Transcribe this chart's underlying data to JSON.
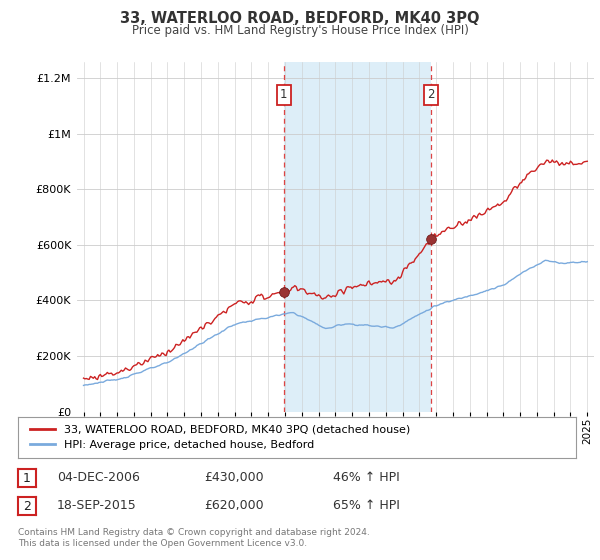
{
  "title": "33, WATERLOO ROAD, BEDFORD, MK40 3PQ",
  "subtitle": "Price paid vs. HM Land Registry's House Price Index (HPI)",
  "legend_line1": "33, WATERLOO ROAD, BEDFORD, MK40 3PQ (detached house)",
  "legend_line2": "HPI: Average price, detached house, Bedford",
  "sale1_year": 2006.917,
  "sale1_price": 430000,
  "sale1_date": "04-DEC-2006",
  "sale1_pct": "46% ↑ HPI",
  "sale2_year": 2015.708,
  "sale2_price": 620000,
  "sale2_date": "18-SEP-2015",
  "sale2_pct": "65% ↑ HPI",
  "hpi_color": "#7aaadd",
  "price_color": "#cc2222",
  "vline_color": "#dd4444",
  "highlight_color": "#ddeef8",
  "ylim": [
    0,
    1260000
  ],
  "yticks": [
    0,
    200000,
    400000,
    600000,
    800000,
    1000000,
    1200000
  ],
  "xlabel_start": 1995,
  "xlabel_end": 2025,
  "footer": "Contains HM Land Registry data © Crown copyright and database right 2024.\nThis data is licensed under the Open Government Licence v3.0.",
  "bg": "#ffffff"
}
